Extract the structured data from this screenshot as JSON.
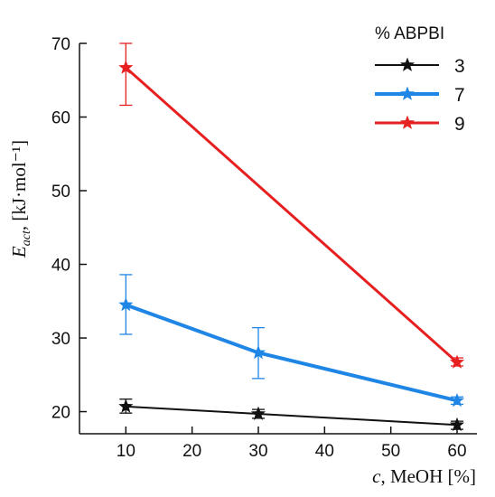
{
  "chart_data": {
    "type": "line",
    "title": "",
    "xlabel": "c, MeOH [%]",
    "ylabel": "E_act, [kJ·mol⁻¹]",
    "xlim": [
      3,
      63
    ],
    "ylim": [
      17,
      70
    ],
    "x_ticks": [
      10,
      20,
      30,
      40,
      50,
      60
    ],
    "y_ticks": [
      20,
      30,
      40,
      50,
      60,
      70
    ],
    "legend_title": "% ABPBI",
    "legend_position": "top-right",
    "series": [
      {
        "name": "3",
        "color": "#111111",
        "line_width": 2,
        "points": [
          {
            "x": 10,
            "y": 20.7,
            "err_lo": 19.8,
            "err_hi": 21.7
          },
          {
            "x": 30,
            "y": 19.7,
            "err_lo": 19.1,
            "err_hi": 20.3
          },
          {
            "x": 60,
            "y": 18.2,
            "err_lo": 17.6,
            "err_hi": 18.7
          }
        ]
      },
      {
        "name": "7",
        "color": "#1f86e6",
        "line_width": 4,
        "points": [
          {
            "x": 10,
            "y": 34.5,
            "err_lo": 30.5,
            "err_hi": 38.6
          },
          {
            "x": 30,
            "y": 28.0,
            "err_lo": 24.5,
            "err_hi": 31.4
          },
          {
            "x": 60,
            "y": 21.5,
            "err_lo": 21.0,
            "err_hi": 22.0
          }
        ]
      },
      {
        "name": "9",
        "color": "#e62020",
        "line_width": 3,
        "points": [
          {
            "x": 10,
            "y": 66.7,
            "err_lo": 61.6,
            "err_hi": 70.0
          },
          {
            "x": 60,
            "y": 26.7,
            "err_lo": 26.2,
            "err_hi": 27.3
          }
        ]
      }
    ]
  }
}
